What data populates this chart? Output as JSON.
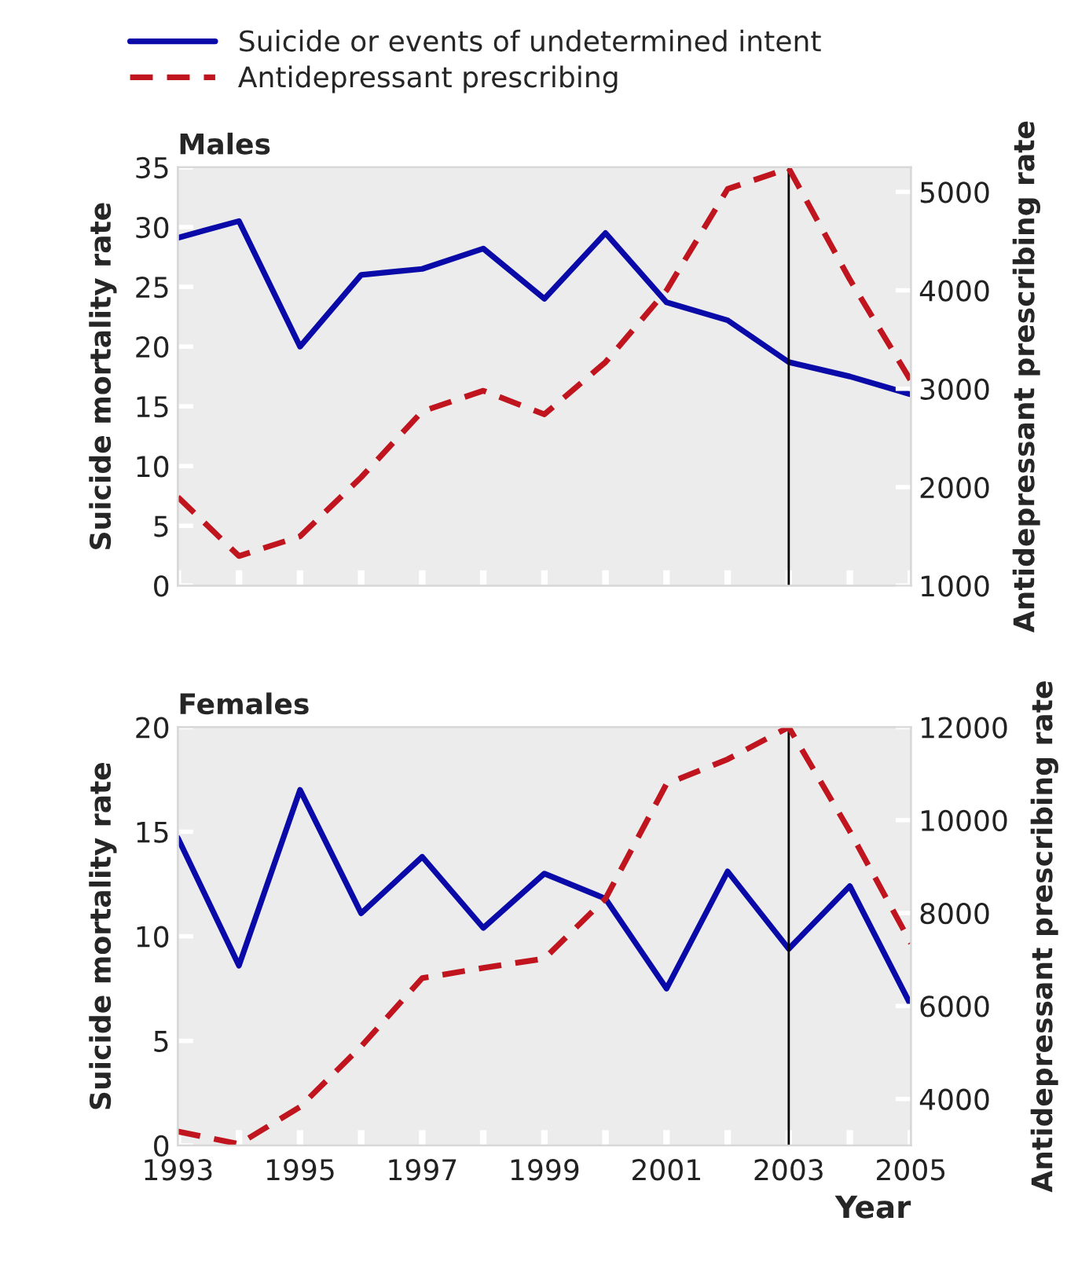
{
  "chart_data": [
    {
      "type": "line",
      "title": "Males",
      "ylabel": "Suicide mortality rate",
      "y2label": "Antidepressant prescribing rate",
      "x": [
        1993,
        1994,
        1995,
        1996,
        1997,
        1998,
        1999,
        2000,
        2001,
        2002,
        2003,
        2004,
        2005
      ],
      "series": [
        {
          "name": "Suicide or events of undetermined intent",
          "color": "#0a0aa8",
          "line_style": "solid",
          "values": [
            29.1,
            30.5,
            20,
            26,
            26.5,
            28.2,
            24,
            29.5,
            23.7,
            22.2,
            18.7,
            17.5,
            16
          ]
        },
        {
          "name": "Antidepressant prescribing",
          "color": "#c0141e",
          "line_style": "dashed",
          "axis": "y2",
          "values": [
            1900,
            1300,
            1500,
            2100,
            2770,
            2980,
            2740,
            3270,
            4000,
            5030,
            5240,
            4110,
            3080
          ]
        }
      ],
      "xlim": [
        1993,
        2005
      ],
      "xticks": [
        {
          "value": 1993,
          "label": null
        },
        {
          "value": 1994,
          "label": null
        },
        {
          "value": 1995,
          "label": null
        },
        {
          "value": 1996,
          "label": null
        },
        {
          "value": 1997,
          "label": null
        },
        {
          "value": 1998,
          "label": null
        },
        {
          "value": 1999,
          "label": null
        },
        {
          "value": 2000,
          "label": null
        },
        {
          "value": 2001,
          "label": null
        },
        {
          "value": 2002,
          "label": null
        },
        {
          "value": 2003,
          "label": null
        },
        {
          "value": 2004,
          "label": null
        },
        {
          "value": 2005,
          "label": null
        }
      ],
      "ylim": [
        0,
        35
      ],
      "yticks": [
        0,
        5,
        10,
        15,
        20,
        25,
        30,
        35
      ],
      "y2lim": [
        1000,
        5250
      ],
      "y2ticks": [
        1000,
        2000,
        3000,
        4000,
        5000
      ],
      "tick_labels": "y",
      "ref_lines": [
        {
          "axis": "x",
          "value": 2003,
          "color": "#000000"
        }
      ],
      "legend": "top",
      "grid": false
    },
    {
      "type": "line",
      "title": "Females",
      "xlabel": "Year",
      "ylabel": "Suicide mortality rate",
      "y2label": "Antidepressant prescribing rate",
      "x": [
        1993,
        1994,
        1995,
        1996,
        1997,
        1998,
        1999,
        2000,
        2001,
        2002,
        2003,
        2004,
        2005
      ],
      "series": [
        {
          "color": "#0a0aa8",
          "line_style": "solid",
          "values": [
            14.7,
            8.6,
            17,
            11.1,
            13.8,
            10.4,
            13,
            11.8,
            7.5,
            13.1,
            9.4,
            12.4,
            6.7
          ]
        },
        {
          "color": "#c0141e",
          "line_style": "dashed",
          "axis": "y2",
          "values": [
            3300,
            3030,
            3830,
            5130,
            6600,
            6820,
            7020,
            8310,
            10780,
            11310,
            12000,
            9760,
            7350
          ]
        }
      ],
      "xlim": [
        1993,
        2005
      ],
      "xticks": [
        1993,
        {
          "value": 1994,
          "label": null
        },
        1995,
        {
          "value": 1996,
          "label": null
        },
        1997,
        {
          "value": 1998,
          "label": null
        },
        1999,
        {
          "value": 2000,
          "label": null
        },
        2001,
        {
          "value": 2002,
          "label": null
        },
        2003,
        {
          "value": 2004,
          "label": null
        },
        2005
      ],
      "ylim": [
        0,
        20
      ],
      "yticks": [
        0,
        5,
        10,
        15,
        20
      ],
      "y2lim": [
        3000,
        12000
      ],
      "y2ticks": [
        4000,
        6000,
        8000,
        10000,
        12000
      ],
      "ref_lines": [
        {
          "axis": "x",
          "value": 2003,
          "color": "#000000"
        }
      ],
      "legend": false,
      "grid": false
    }
  ]
}
